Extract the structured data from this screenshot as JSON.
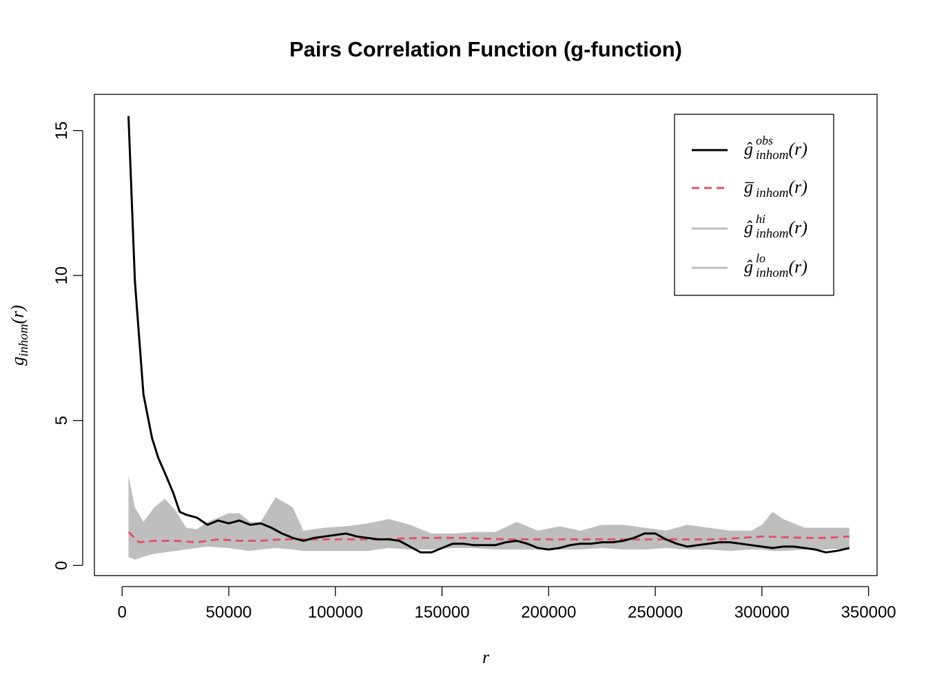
{
  "chart_data": {
    "type": "line",
    "title": "Pairs Correlation Function (g-function)",
    "xlabel": "r",
    "ylabel": {
      "base": "g",
      "sub": "inhom",
      "arg": "(r)"
    },
    "xlim": [
      -13000,
      354000
    ],
    "ylim": [
      -0.35,
      16.25
    ],
    "x_ticks": [
      0,
      50000,
      100000,
      150000,
      200000,
      250000,
      300000,
      350000
    ],
    "x_tick_labels": [
      "0",
      "50000",
      "100000",
      "150000",
      "200000",
      "250000",
      "300000",
      "350000"
    ],
    "y_ticks": [
      0,
      5,
      10,
      15
    ],
    "y_tick_labels": [
      "0",
      "5",
      "10",
      "15"
    ],
    "grid": false,
    "legend_position": "top-right",
    "legend": [
      {
        "key": "obs",
        "base": "ĝ",
        "sup": "obs",
        "sub": "inhom",
        "arg": "(r)",
        "color": "#000000",
        "style": "solid"
      },
      {
        "key": "theo",
        "base": "g̅",
        "sup": "",
        "sub": "inhom",
        "arg": "(r)",
        "color": "#DF536B",
        "style": "dashed"
      },
      {
        "key": "hi",
        "base": "ĝ",
        "sup": "hi",
        "sub": "inhom",
        "arg": "(r)",
        "color": "#BEBEBE",
        "style": "solid"
      },
      {
        "key": "lo",
        "base": "ĝ",
        "sup": "lo",
        "sub": "inhom",
        "arg": "(r)",
        "color": "#BEBEBE",
        "style": "solid"
      }
    ],
    "colors": {
      "obs": "#000000",
      "theo": "#DF536B",
      "envelope": "#BEBEBE"
    },
    "series": [
      {
        "key": "obs",
        "x": [
          3000,
          6000,
          10000,
          14000,
          17000,
          20000,
          24000,
          27000,
          30000,
          35000,
          40000,
          45000,
          50000,
          55000,
          60000,
          65000,
          70000,
          75000,
          80000,
          85000,
          90000,
          95000,
          100000,
          105000,
          110000,
          115000,
          120000,
          125000,
          130000,
          135000,
          140000,
          145000,
          150000,
          155000,
          160000,
          165000,
          170000,
          175000,
          180000,
          185000,
          190000,
          195000,
          200000,
          205000,
          210000,
          215000,
          220000,
          225000,
          230000,
          235000,
          240000,
          245000,
          250000,
          255000,
          260000,
          265000,
          270000,
          275000,
          280000,
          285000,
          290000,
          295000,
          300000,
          305000,
          310000,
          315000,
          320000,
          325000,
          330000,
          335000,
          341000
        ],
        "values": [
          15.5,
          9.8,
          5.9,
          4.4,
          3.7,
          3.2,
          2.5,
          1.85,
          1.75,
          1.65,
          1.4,
          1.55,
          1.45,
          1.55,
          1.4,
          1.45,
          1.3,
          1.1,
          0.95,
          0.85,
          0.95,
          1.0,
          1.05,
          1.1,
          1.0,
          0.95,
          0.9,
          0.9,
          0.85,
          0.65,
          0.45,
          0.45,
          0.6,
          0.75,
          0.75,
          0.7,
          0.7,
          0.7,
          0.8,
          0.85,
          0.75,
          0.6,
          0.55,
          0.6,
          0.7,
          0.75,
          0.75,
          0.8,
          0.8,
          0.85,
          0.95,
          1.1,
          1.1,
          0.9,
          0.75,
          0.65,
          0.7,
          0.75,
          0.8,
          0.8,
          0.75,
          0.7,
          0.65,
          0.6,
          0.65,
          0.65,
          0.6,
          0.55,
          0.45,
          0.5,
          0.6
        ]
      },
      {
        "key": "theo",
        "x": [
          3000,
          8000,
          15000,
          25000,
          35000,
          45000,
          55000,
          65000,
          75000,
          85000,
          100000,
          120000,
          140000,
          160000,
          180000,
          200000,
          220000,
          240000,
          260000,
          280000,
          300000,
          320000,
          330000,
          341000
        ],
        "values": [
          1.15,
          0.8,
          0.85,
          0.85,
          0.8,
          0.9,
          0.85,
          0.85,
          0.9,
          0.9,
          0.9,
          0.9,
          0.95,
          0.95,
          0.9,
          0.9,
          0.9,
          0.9,
          0.9,
          0.9,
          1.0,
          0.95,
          0.95,
          1.0
        ]
      },
      {
        "key": "hi",
        "x": [
          3000,
          6000,
          10000,
          15000,
          20000,
          25000,
          30000,
          35000,
          40000,
          50000,
          55000,
          60000,
          65000,
          72000,
          80000,
          85000,
          95000,
          105000,
          115000,
          125000,
          135000,
          145000,
          155000,
          165000,
          175000,
          185000,
          195000,
          205000,
          215000,
          225000,
          235000,
          245000,
          255000,
          265000,
          275000,
          285000,
          295000,
          300000,
          305000,
          310000,
          320000,
          330000,
          341000
        ],
        "values": [
          3.1,
          2.0,
          1.5,
          2.0,
          2.3,
          1.9,
          1.3,
          1.25,
          1.5,
          1.8,
          1.8,
          1.5,
          1.5,
          2.35,
          2.0,
          1.2,
          1.3,
          1.35,
          1.45,
          1.6,
          1.4,
          1.1,
          1.1,
          1.15,
          1.15,
          1.5,
          1.2,
          1.35,
          1.2,
          1.4,
          1.4,
          1.3,
          1.2,
          1.4,
          1.3,
          1.2,
          1.2,
          1.4,
          1.85,
          1.6,
          1.3,
          1.3,
          1.3
        ]
      },
      {
        "key": "lo",
        "x": [
          3000,
          6000,
          10000,
          15000,
          20000,
          25000,
          30000,
          35000,
          40000,
          50000,
          55000,
          60000,
          65000,
          72000,
          80000,
          85000,
          95000,
          105000,
          115000,
          125000,
          135000,
          145000,
          155000,
          165000,
          175000,
          185000,
          195000,
          205000,
          215000,
          225000,
          235000,
          245000,
          255000,
          265000,
          275000,
          285000,
          295000,
          300000,
          305000,
          310000,
          320000,
          330000,
          341000
        ],
        "values": [
          0.3,
          0.2,
          0.3,
          0.4,
          0.45,
          0.5,
          0.55,
          0.6,
          0.65,
          0.6,
          0.55,
          0.5,
          0.55,
          0.6,
          0.55,
          0.5,
          0.5,
          0.5,
          0.5,
          0.6,
          0.55,
          0.55,
          0.6,
          0.6,
          0.55,
          0.55,
          0.55,
          0.55,
          0.55,
          0.6,
          0.55,
          0.55,
          0.6,
          0.55,
          0.55,
          0.5,
          0.55,
          0.55,
          0.5,
          0.5,
          0.55,
          0.55,
          0.6
        ]
      }
    ]
  }
}
